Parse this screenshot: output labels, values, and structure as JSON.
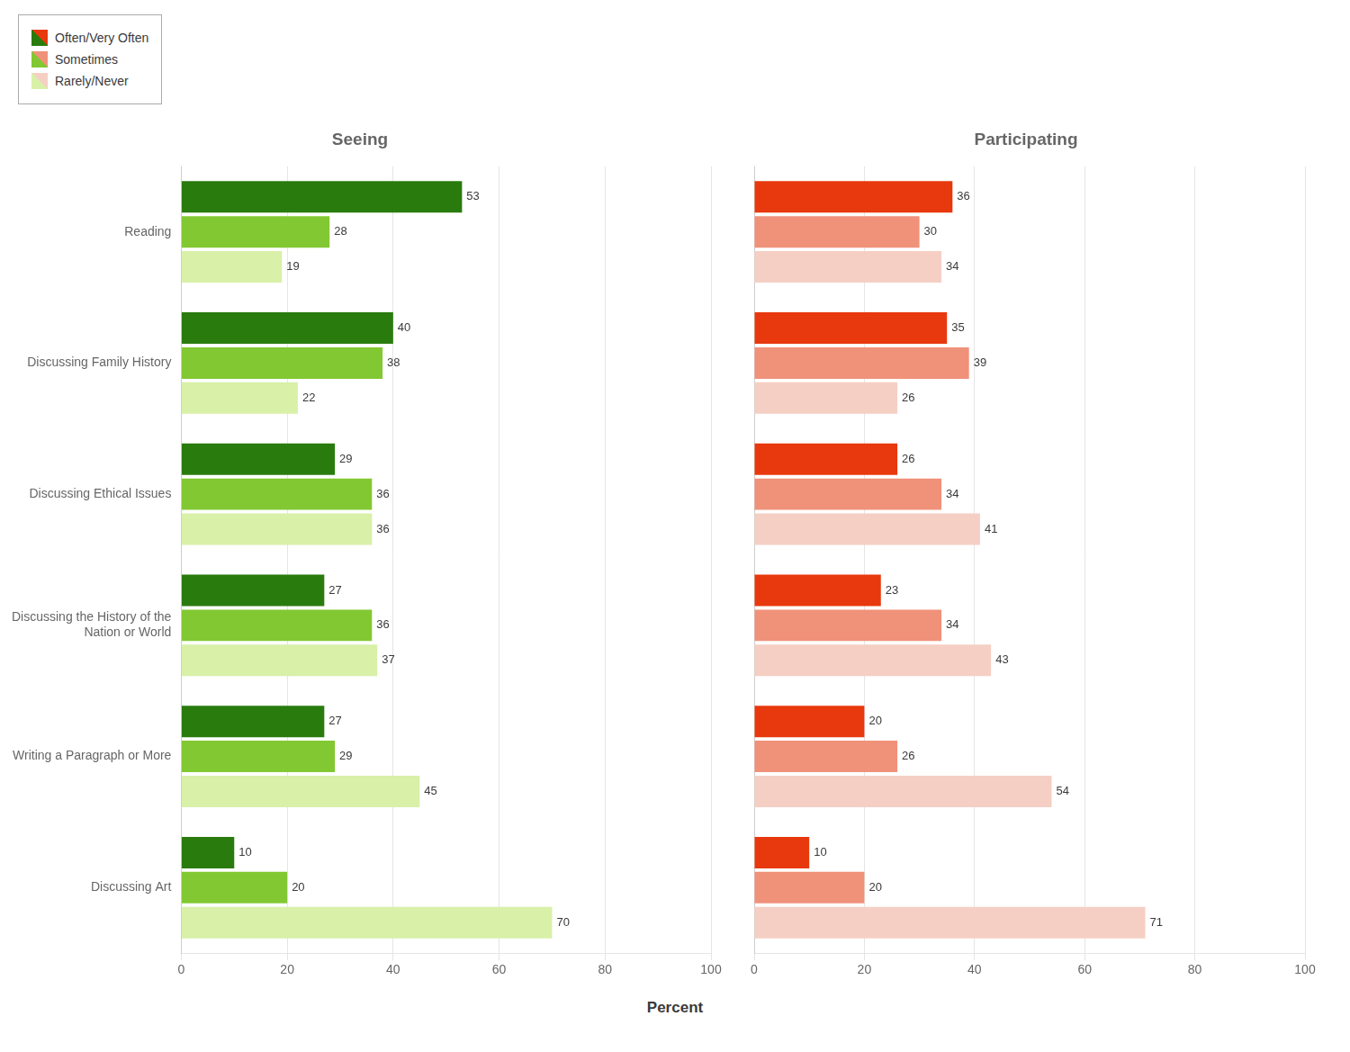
{
  "chart_data": [
    {
      "type": "bar",
      "orientation": "horizontal",
      "title": "Seeing",
      "xlabel": "Percent",
      "categories": [
        "Reading",
        "Discussing Family History",
        "Discussing Ethical Issues",
        "Discussing the History of the\nNation or World",
        "Writing a Paragraph or More",
        "Discussing Art"
      ],
      "series": [
        {
          "name": "Often/Very Often",
          "color": "#2a7b0e",
          "values": [
            53,
            40,
            29,
            27,
            27,
            10
          ]
        },
        {
          "name": "Sometimes",
          "color": "#82c832",
          "values": [
            28,
            38,
            36,
            36,
            29,
            20
          ]
        },
        {
          "name": "Rarely/Never",
          "color": "#d8f0a8",
          "values": [
            19,
            22,
            36,
            37,
            45,
            70
          ]
        }
      ],
      "xlim": [
        0,
        100
      ],
      "xticks": [
        0,
        20,
        40,
        60,
        80,
        100
      ],
      "grid": true,
      "data_labels": true,
      "legend": "upper left"
    },
    {
      "type": "bar",
      "orientation": "horizontal",
      "title": "Participating",
      "categories": [
        "Reading",
        "Discussing Family History",
        "Discussing Ethical Issues",
        "Discussing the History of the\nNation or World",
        "Writing a Paragraph or More",
        "Discussing Art"
      ],
      "series": [
        {
          "name": "Often/Very Often",
          "color": "#e8380d",
          "values": [
            36,
            35,
            26,
            23,
            20,
            10
          ]
        },
        {
          "name": "Sometimes",
          "color": "#f0917a",
          "values": [
            30,
            39,
            34,
            34,
            26,
            20
          ]
        },
        {
          "name": "Rarely/Never",
          "color": "#f5cfc4",
          "values": [
            34,
            26,
            41,
            43,
            54,
            71
          ]
        }
      ],
      "xlim": [
        0,
        100
      ],
      "xticks": [
        0,
        20,
        40,
        60,
        80,
        100
      ],
      "grid": true,
      "data_labels": true,
      "tick_labels": "x"
    }
  ]
}
